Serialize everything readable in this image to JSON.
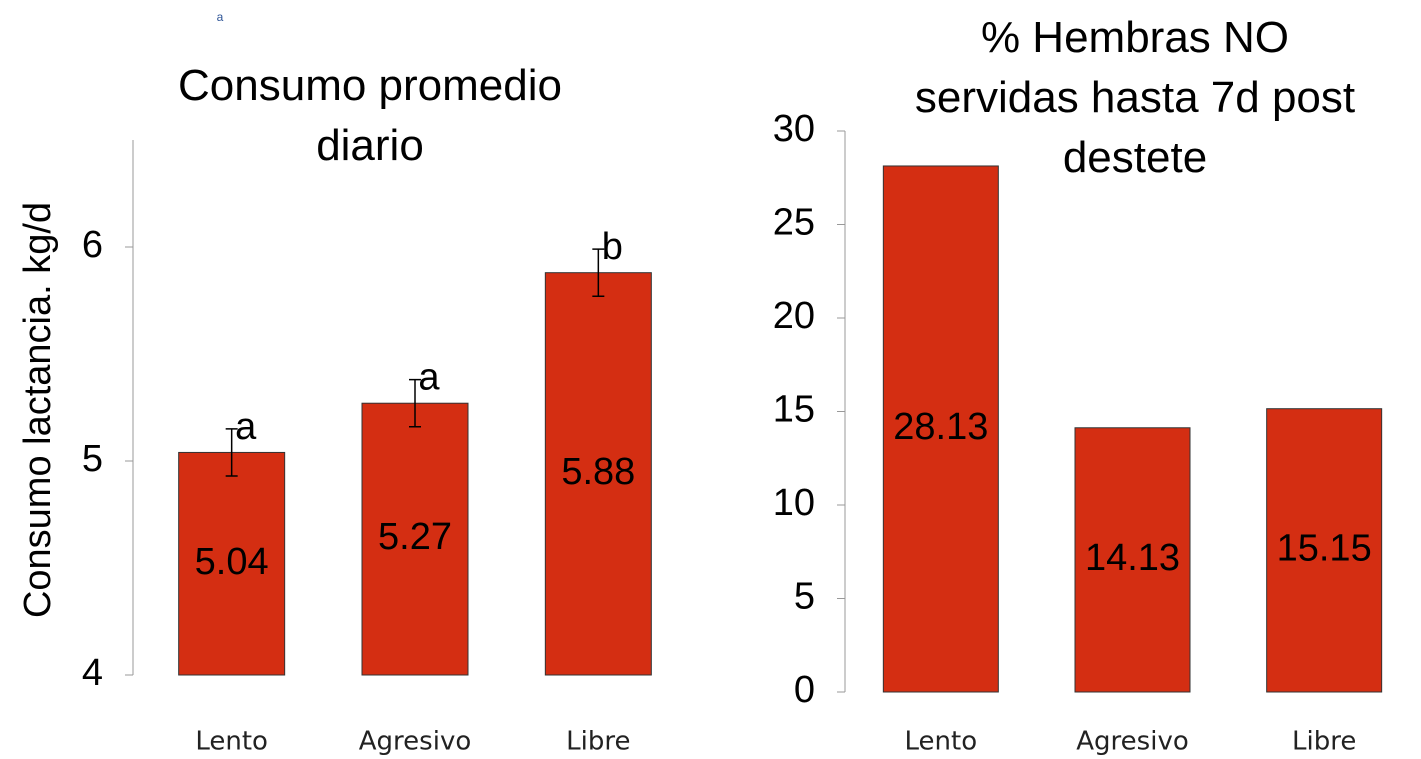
{
  "annotation": "a",
  "chart_data": [
    {
      "type": "bar",
      "title": "Consumo promedio\ndiario",
      "ylabel": "Consumo lactancia. kg/d",
      "categories": [
        "Lento",
        "Agresivo",
        "Libre"
      ],
      "values": [
        5.04,
        5.27,
        5.88
      ],
      "errors": [
        0.11,
        0.11,
        0.11
      ],
      "significance": [
        "a",
        "a",
        "b"
      ],
      "color": "#d42e12",
      "ylim": [
        4,
        6.5
      ],
      "yticks": [
        4,
        5,
        6
      ]
    },
    {
      "type": "bar",
      "title": "% Hembras NO\nservidas hasta 7d post\ndestete",
      "categories": [
        "Lento",
        "Agresivo",
        "Libre"
      ],
      "values": [
        28.13,
        14.13,
        15.15
      ],
      "color": "#d42e12",
      "ylim": [
        0,
        30
      ],
      "yticks": [
        0,
        5,
        10,
        15,
        20,
        25,
        30
      ]
    }
  ]
}
